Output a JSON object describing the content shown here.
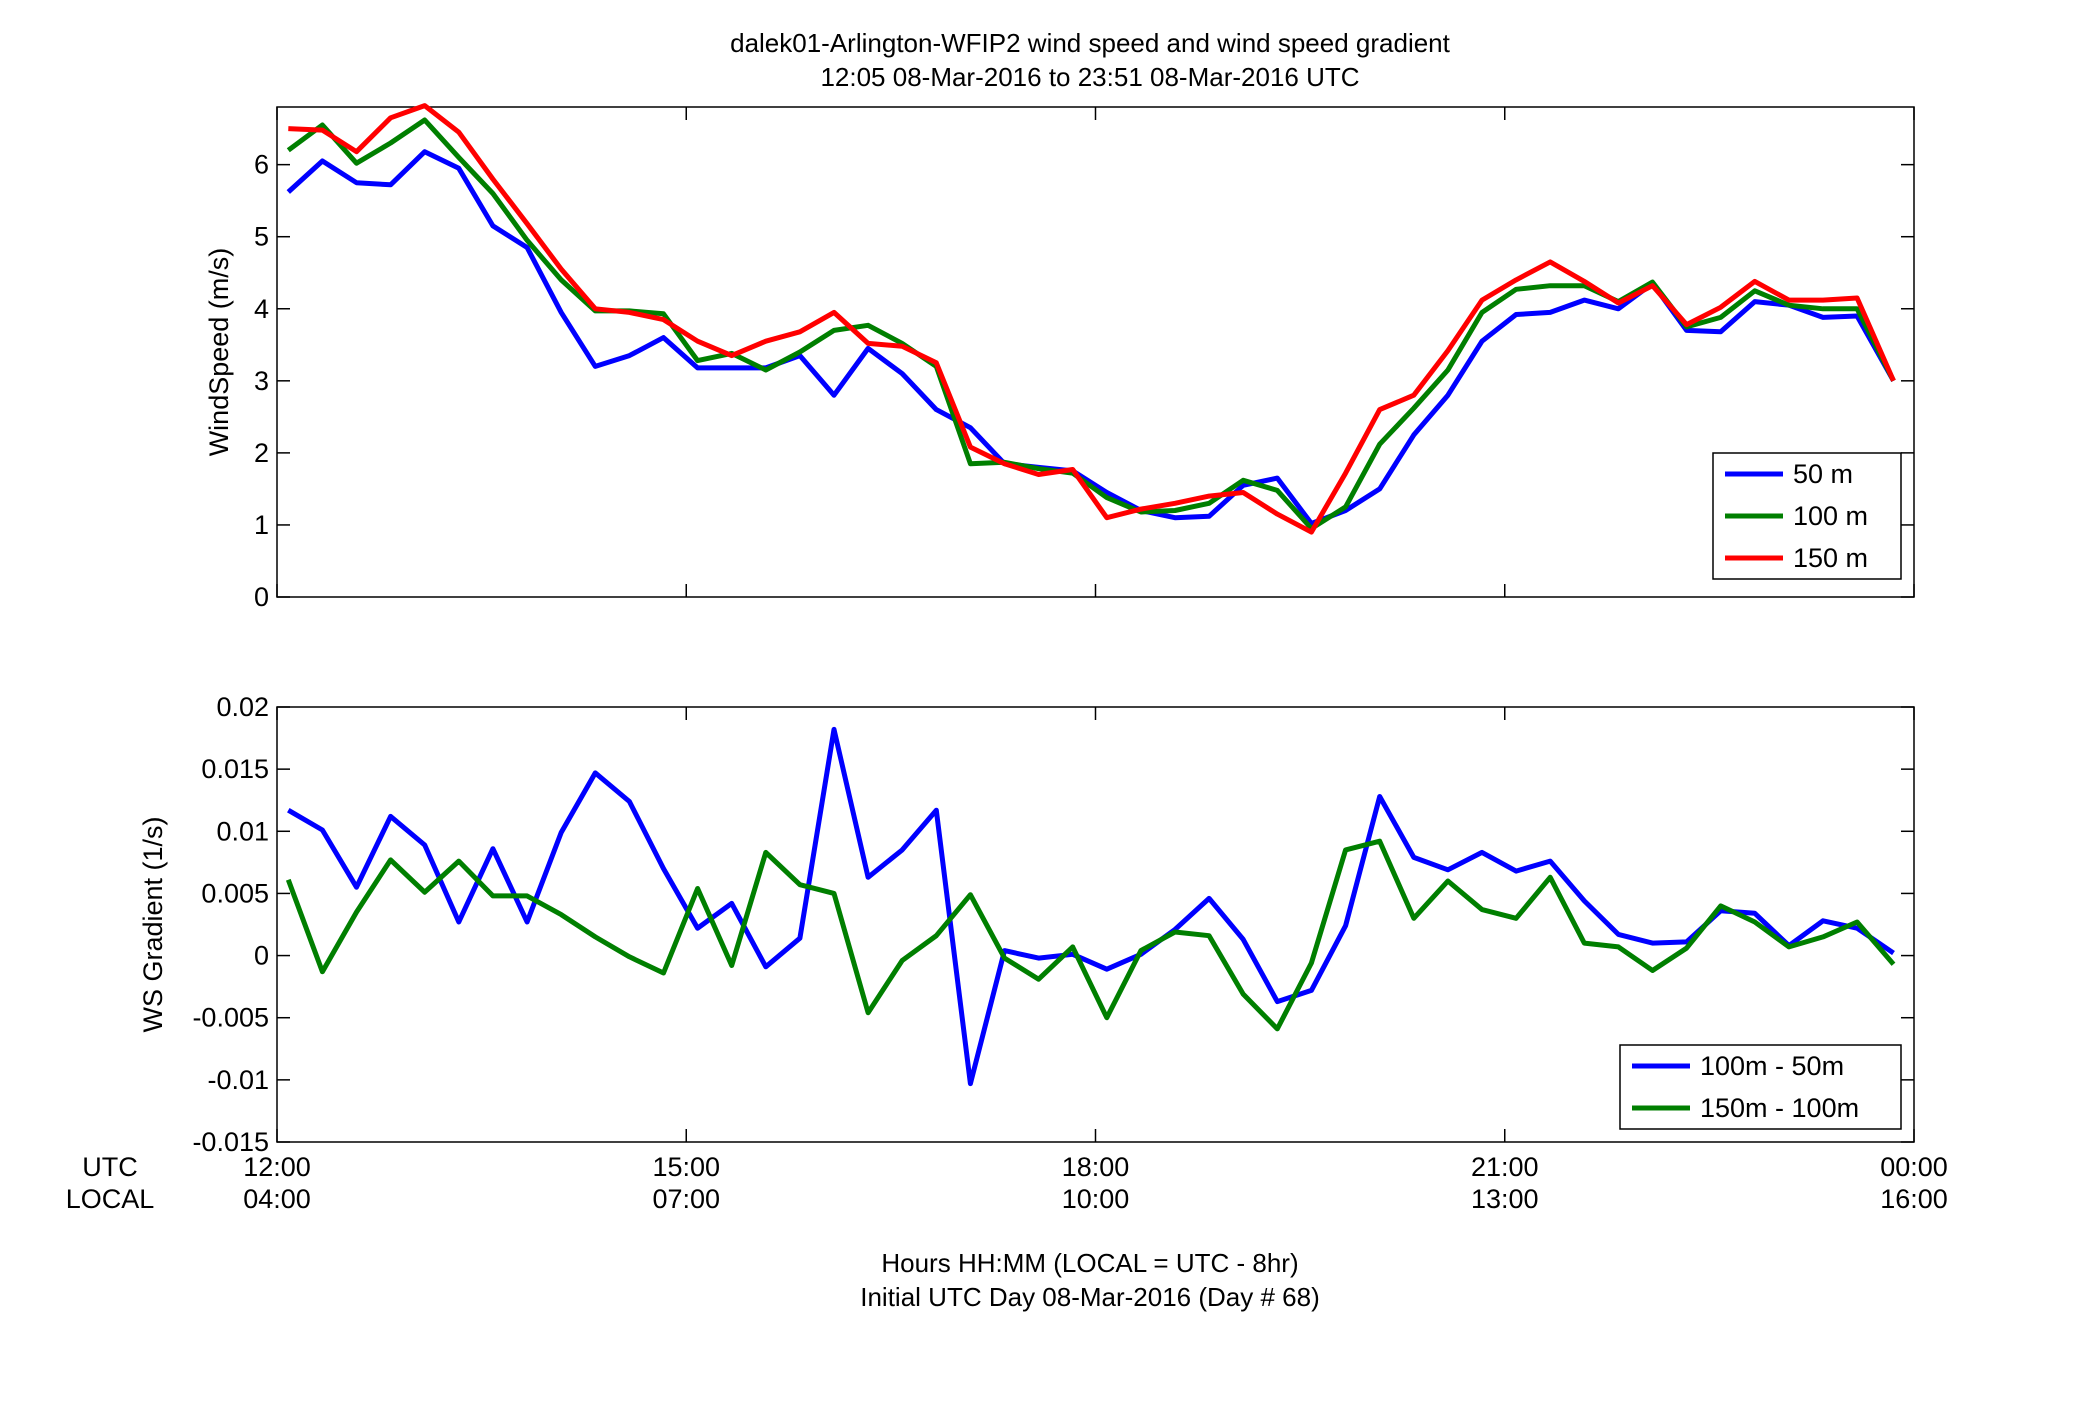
{
  "figure": {
    "title_line1": "dalek01-Arlington-WFIP2  wind speed and wind speed gradient",
    "title_line2": "12:05 08-Mar-2016 to 23:51 08-Mar-2016  UTC",
    "xaxis_row_labels": [
      "UTC",
      "LOCAL"
    ],
    "xticks_utc": [
      "12:00",
      "15:00",
      "18:00",
      "21:00",
      "00:00"
    ],
    "xticks_local": [
      "04:00",
      "07:00",
      "10:00",
      "13:00",
      "16:00"
    ],
    "footer_line1": "Hours HH:MM  (LOCAL = UTC - 8hr)",
    "footer_line2": "Initial UTC Day 08-Mar-2016 (Day # 68)"
  },
  "chart_data": [
    {
      "type": "line",
      "ylabel": "WindSpeed (m/s)",
      "ylim": [
        0,
        6.8
      ],
      "yticks": [
        0,
        1,
        2,
        3,
        4,
        5,
        6
      ],
      "xlim": [
        12.0,
        24.0
      ],
      "grid": false,
      "legend_position": "bottom-right",
      "x": [
        12.083,
        12.333,
        12.583,
        12.833,
        13.083,
        13.333,
        13.583,
        13.833,
        14.083,
        14.333,
        14.583,
        14.833,
        15.083,
        15.333,
        15.583,
        15.833,
        16.083,
        16.333,
        16.583,
        16.833,
        17.083,
        17.333,
        17.583,
        17.833,
        18.083,
        18.333,
        18.583,
        18.833,
        19.083,
        19.333,
        19.583,
        19.833,
        20.083,
        20.333,
        20.583,
        20.833,
        21.083,
        21.333,
        21.583,
        21.833,
        22.083,
        22.333,
        22.583,
        22.833,
        23.083,
        23.333,
        23.583,
        23.85
      ],
      "series": [
        {
          "name": "50 m",
          "color": "#0000ff",
          "values": [
            5.62,
            6.05,
            5.75,
            5.72,
            6.18,
            5.95,
            5.15,
            4.85,
            3.95,
            3.2,
            3.35,
            3.6,
            3.18,
            3.18,
            3.18,
            3.35,
            2.8,
            3.45,
            3.1,
            2.6,
            2.35,
            1.85,
            1.8,
            1.75,
            1.45,
            1.2,
            1.1,
            1.12,
            1.55,
            1.65,
            1.02,
            1.2,
            1.5,
            2.25,
            2.8,
            3.55,
            3.92,
            3.95,
            4.12,
            4.0,
            4.35,
            3.7,
            3.68,
            4.1,
            4.05,
            3.88,
            3.9,
            3.0
          ]
        },
        {
          "name": "100 m",
          "color": "#007f00",
          "values": [
            6.2,
            6.55,
            6.02,
            6.3,
            6.62,
            6.1,
            5.6,
            4.95,
            4.4,
            3.97,
            3.97,
            3.93,
            3.28,
            3.38,
            3.15,
            3.4,
            3.7,
            3.77,
            3.52,
            3.2,
            1.85,
            1.87,
            1.78,
            1.72,
            1.38,
            1.18,
            1.2,
            1.3,
            1.62,
            1.48,
            0.95,
            1.25,
            2.12,
            2.62,
            3.15,
            3.95,
            4.27,
            4.32,
            4.32,
            4.1,
            4.37,
            3.75,
            3.88,
            4.25,
            4.05,
            4.0,
            4.0,
            3.0
          ]
        },
        {
          "name": "150 m",
          "color": "#ff0000",
          "values": [
            6.5,
            6.48,
            6.18,
            6.65,
            6.82,
            6.45,
            5.8,
            5.18,
            4.55,
            4.0,
            3.95,
            3.85,
            3.55,
            3.35,
            3.55,
            3.68,
            3.95,
            3.52,
            3.48,
            3.25,
            2.08,
            1.85,
            1.7,
            1.77,
            1.1,
            1.22,
            1.3,
            1.4,
            1.45,
            1.15,
            0.9,
            1.72,
            2.6,
            2.8,
            3.42,
            4.12,
            4.4,
            4.65,
            4.38,
            4.08,
            4.32,
            3.78,
            4.02,
            4.38,
            4.12,
            4.12,
            4.15,
            3.0
          ]
        }
      ]
    },
    {
      "type": "line",
      "ylabel": "WS Gradient (1/s)",
      "ylim": [
        -0.015,
        0.02
      ],
      "yticks": [
        -0.015,
        -0.01,
        -0.005,
        0,
        0.005,
        0.01,
        0.015,
        0.02
      ],
      "ytick_labels": [
        "-0.015",
        "-0.01",
        "-0.005",
        "0",
        "0.005",
        "0.01",
        "0.015",
        "0.02"
      ],
      "xlim": [
        12.0,
        24.0
      ],
      "grid": false,
      "legend_position": "bottom-right",
      "x": [
        12.083,
        12.333,
        12.583,
        12.833,
        13.083,
        13.333,
        13.583,
        13.833,
        14.083,
        14.333,
        14.583,
        14.833,
        15.083,
        15.333,
        15.583,
        15.833,
        16.083,
        16.333,
        16.583,
        16.833,
        17.083,
        17.333,
        17.583,
        17.833,
        18.083,
        18.333,
        18.583,
        18.833,
        19.083,
        19.333,
        19.583,
        19.833,
        20.083,
        20.333,
        20.583,
        20.833,
        21.083,
        21.333,
        21.583,
        21.833,
        22.083,
        22.333,
        22.583,
        22.833,
        23.083,
        23.333,
        23.583,
        23.85
      ],
      "series": [
        {
          "name": "100m - 50m",
          "color": "#0000ff",
          "values": [
            0.0117,
            0.0101,
            0.0055,
            0.0112,
            0.0089,
            0.0027,
            0.0086,
            0.0027,
            0.0099,
            0.0147,
            0.0124,
            0.007,
            0.0022,
            0.0042,
            -0.0009,
            0.0014,
            0.0182,
            0.0063,
            0.0085,
            0.0117,
            -0.0103,
            0.0004,
            -0.0002,
            0.0001,
            -0.0011,
            0.0001,
            0.0021,
            0.0046,
            0.0013,
            -0.0037,
            -0.0028,
            0.0024,
            0.0128,
            0.0079,
            0.0069,
            0.0083,
            0.0068,
            0.0076,
            0.0044,
            0.0017,
            0.001,
            0.0011,
            0.0036,
            0.0034,
            0.0008,
            0.0028,
            0.0022,
            0.0002
          ]
        },
        {
          "name": "150m - 100m",
          "color": "#007f00",
          "values": [
            0.0061,
            -0.0013,
            0.0035,
            0.0077,
            0.0051,
            0.0076,
            0.0048,
            0.0048,
            0.0033,
            0.0015,
            -0.0001,
            -0.0014,
            0.0054,
            -0.0008,
            0.0083,
            0.0057,
            0.005,
            -0.0046,
            -0.0004,
            0.0016,
            0.0049,
            -0.0002,
            -0.0019,
            0.0007,
            -0.005,
            0.0004,
            0.0019,
            0.0016,
            -0.0031,
            -0.0059,
            -0.0006,
            0.0085,
            0.0092,
            0.003,
            0.006,
            0.0037,
            0.003,
            0.0063,
            0.001,
            0.0007,
            -0.0012,
            0.0006,
            0.004,
            0.0027,
            0.0007,
            0.0015,
            0.0027,
            -0.0007
          ]
        }
      ]
    }
  ]
}
